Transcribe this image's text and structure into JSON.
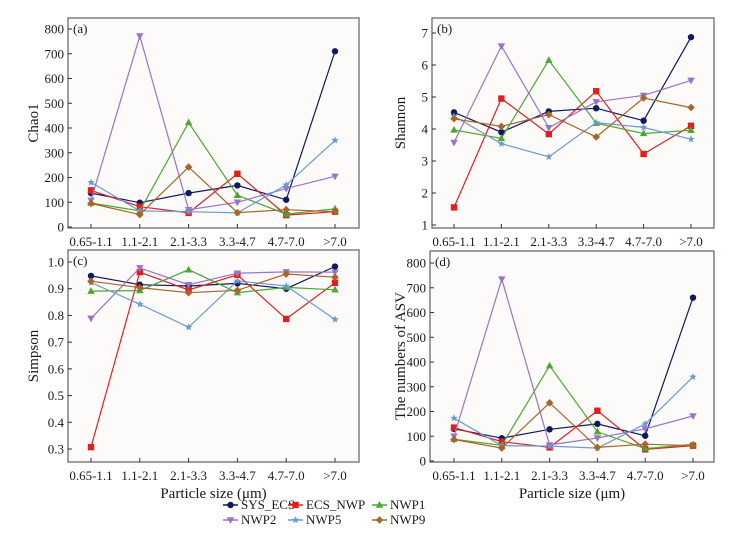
{
  "figure": {
    "legend": [
      {
        "name": "SYS_ECS",
        "color": "#0d1a5c",
        "marker": "circle"
      },
      {
        "name": "ECS_NWP",
        "color": "#e0201e",
        "marker": "square"
      },
      {
        "name": "NWP1",
        "color": "#4aa832",
        "marker": "triangle-up"
      },
      {
        "name": "NWP2",
        "color": "#9b72c8",
        "marker": "triangle-down"
      },
      {
        "name": "NWP5",
        "color": "#6a9bd0",
        "marker": "star"
      },
      {
        "name": "NWP9",
        "color": "#a8642a",
        "marker": "diamond"
      }
    ]
  },
  "chart_data": [
    {
      "type": "line",
      "panel": "(a)",
      "title": "",
      "xlabel": "",
      "ylabel": "Chao1",
      "categories": [
        "0.65-1.1",
        "1.1-2.1",
        "2.1-3.3",
        "3.3-4.7",
        "4.7-7.0",
        ">7.0"
      ],
      "ylim": [
        0,
        800
      ],
      "yticks": [
        0,
        100,
        200,
        300,
        400,
        500,
        600,
        700,
        800
      ],
      "ytick_labels": [
        "0",
        "100",
        "200",
        "300",
        "400",
        "500",
        "600",
        "700",
        "800"
      ],
      "grid": false,
      "series": [
        {
          "name": "SYS_ECS",
          "values": [
            137,
            98,
            137,
            168,
            110,
            710
          ]
        },
        {
          "name": "ECS_NWP",
          "values": [
            148,
            82,
            57,
            215,
            48,
            62
          ]
        },
        {
          "name": "NWP1",
          "values": [
            97,
            65,
            422,
            128,
            52,
            73
          ]
        },
        {
          "name": "NWP2",
          "values": [
            108,
            772,
            70,
            100,
            155,
            205
          ]
        },
        {
          "name": "NWP5",
          "values": [
            180,
            65,
            62,
            57,
            170,
            350
          ]
        },
        {
          "name": "NWP9",
          "values": [
            95,
            50,
            242,
            58,
            70,
            62
          ]
        }
      ]
    },
    {
      "type": "line",
      "panel": "(b)",
      "title": "",
      "xlabel": "",
      "ylabel": "Shannon",
      "categories": [
        "0.65-1.1",
        "1.1-2.1",
        "2.1-3.3",
        "3.3-4.7",
        "4.7-7.0",
        ">7.0"
      ],
      "ylim": [
        1,
        7.4
      ],
      "yticks": [
        1,
        2,
        3,
        4,
        5,
        6,
        7
      ],
      "ytick_labels": [
        "1",
        "2",
        "3",
        "4",
        "5",
        "6",
        "7"
      ],
      "grid": false,
      "series": [
        {
          "name": "SYS_ECS",
          "values": [
            4.52,
            3.9,
            4.55,
            4.65,
            4.26,
            6.87
          ]
        },
        {
          "name": "ECS_NWP",
          "values": [
            1.55,
            4.95,
            3.84,
            5.18,
            3.22,
            4.1
          ]
        },
        {
          "name": "NWP1",
          "values": [
            3.97,
            3.71,
            6.15,
            4.18,
            3.86,
            3.96
          ]
        },
        {
          "name": "NWP2",
          "values": [
            3.58,
            6.59,
            4.04,
            4.85,
            5.05,
            5.52
          ]
        },
        {
          "name": "NWP5",
          "values": [
            4.4,
            3.54,
            3.13,
            4.2,
            4.05,
            3.68
          ]
        },
        {
          "name": "NWP9",
          "values": [
            4.32,
            4.08,
            4.45,
            3.75,
            4.97,
            4.67
          ]
        }
      ]
    },
    {
      "type": "line",
      "panel": "(c)",
      "title": "",
      "xlabel": "Particle size (μm)",
      "ylabel": "Simpson",
      "categories": [
        "0.65-1.1",
        "1.1-2.1",
        "2.1-3.3",
        "3.3-4.7",
        "4.7-7.0",
        ">7.0"
      ],
      "ylim": [
        0.25,
        1.05
      ],
      "yticks": [
        0.3,
        0.4,
        0.5,
        0.6,
        0.7,
        0.8,
        0.9,
        1.0
      ],
      "ytick_labels": [
        "0.3",
        "0.4",
        "0.5",
        "0.6",
        "0.7",
        "0.8",
        "0.9",
        "1.0"
      ],
      "grid": false,
      "series": [
        {
          "name": "SYS_ECS",
          "values": [
            0.948,
            0.915,
            0.91,
            0.92,
            0.9,
            0.983
          ]
        },
        {
          "name": "ECS_NWP",
          "values": [
            0.307,
            0.962,
            0.895,
            0.952,
            0.787,
            0.922
          ]
        },
        {
          "name": "NWP1",
          "values": [
            0.891,
            0.893,
            0.971,
            0.885,
            0.905,
            0.896
          ]
        },
        {
          "name": "NWP2",
          "values": [
            0.789,
            0.978,
            0.915,
            0.958,
            0.963,
            0.962
          ]
        },
        {
          "name": "NWP5",
          "values": [
            0.923,
            0.842,
            0.756,
            0.929,
            0.91,
            0.785
          ]
        },
        {
          "name": "NWP9",
          "values": [
            0.928,
            0.904,
            0.885,
            0.894,
            0.955,
            0.943
          ]
        }
      ]
    },
    {
      "type": "line",
      "panel": "(d)",
      "title": "",
      "xlabel": "Particle size (μm)",
      "ylabel": "The numbers of ASV",
      "categories": [
        "0.65-1.1",
        "1.1-2.1",
        "2.1-3.3",
        "3.3-4.7",
        "4.7-7.0",
        ">7.0"
      ],
      "ylim": [
        0,
        800
      ],
      "yticks": [
        0,
        100,
        200,
        300,
        400,
        500,
        600,
        700,
        800
      ],
      "ytick_labels": [
        "0",
        "100",
        "200",
        "300",
        "400",
        "500",
        "600",
        "700",
        "800"
      ],
      "grid": false,
      "series": [
        {
          "name": "SYS_ECS",
          "values": [
            130,
            92,
            128,
            150,
            102,
            660
          ]
        },
        {
          "name": "ECS_NWP",
          "values": [
            135,
            78,
            55,
            203,
            47,
            62
          ]
        },
        {
          "name": "NWP1",
          "values": [
            88,
            63,
            385,
            118,
            50,
            67
          ]
        },
        {
          "name": "NWP2",
          "values": [
            100,
            735,
            65,
            93,
            130,
            182
          ]
        },
        {
          "name": "NWP5",
          "values": [
            173,
            62,
            60,
            52,
            150,
            340
          ]
        },
        {
          "name": "NWP9",
          "values": [
            87,
            52,
            235,
            55,
            68,
            62
          ]
        }
      ]
    }
  ]
}
